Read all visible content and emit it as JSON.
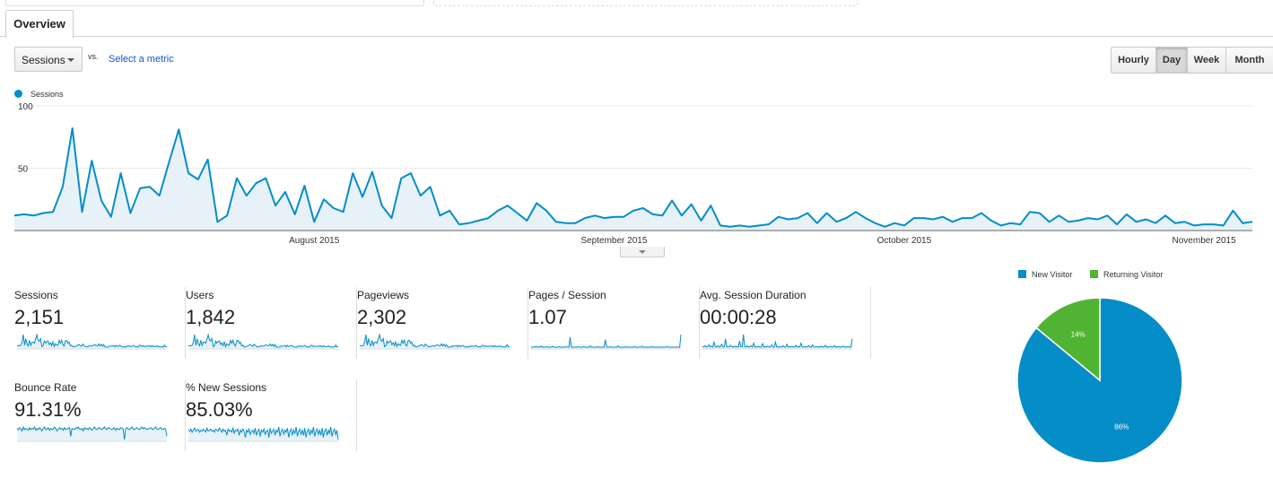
{
  "tabs": {
    "overview": "Overview"
  },
  "toolbar": {
    "metric_select": "Sessions",
    "vs": "vs.",
    "select_metric": "Select a metric",
    "time_buttons": [
      {
        "label": "Hourly",
        "active": false
      },
      {
        "label": "Day",
        "active": true
      },
      {
        "label": "Week",
        "active": false
      },
      {
        "label": "Month",
        "active": false
      }
    ]
  },
  "colors": {
    "accent": "#058dc7",
    "secondary": "#50b432",
    "area_fill": "#e6f2f8",
    "link": "#1155cc"
  },
  "chart_data": {
    "type": "area",
    "legend": "Sessions",
    "yticks": [
      100,
      50
    ],
    "ylim": [
      0,
      100
    ],
    "x_tick_labels": [
      {
        "label": "August 2015",
        "index": 31
      },
      {
        "label": "September 2015",
        "index": 62
      },
      {
        "label": "October 2015",
        "index": 92
      },
      {
        "label": "November 2015",
        "index": 123
      }
    ],
    "start_date": "2015-07-01",
    "values": [
      12,
      13,
      12,
      14,
      15,
      35,
      82,
      15,
      56,
      24,
      11,
      46,
      14,
      34,
      35,
      28,
      55,
      81,
      46,
      41,
      57,
      7,
      12,
      42,
      28,
      38,
      42,
      20,
      31,
      13,
      36,
      7,
      25,
      18,
      15,
      46,
      27,
      47,
      20,
      10,
      42,
      46,
      28,
      35,
      12,
      16,
      5,
      6,
      8,
      10,
      16,
      20,
      14,
      8,
      22,
      16,
      7,
      6,
      6,
      10,
      12,
      10,
      11,
      11,
      16,
      18,
      13,
      12,
      24,
      12,
      21,
      8,
      20,
      4,
      3,
      4,
      3,
      4,
      5,
      11,
      9,
      10,
      14,
      6,
      14,
      7,
      10,
      15,
      10,
      6,
      3,
      6,
      4,
      10,
      10,
      9,
      11,
      7,
      10,
      10,
      14,
      8,
      4,
      6,
      5,
      15,
      14,
      7,
      12,
      7,
      8,
      10,
      9,
      12,
      5,
      13,
      7,
      9,
      6,
      12,
      6,
      7,
      4,
      5,
      5,
      4,
      16,
      6,
      7
    ]
  },
  "scorecards": [
    {
      "label": "Sessions",
      "value": "2,151",
      "spark": [
        12,
        13,
        12,
        15,
        35,
        82,
        15,
        56,
        24,
        11,
        46,
        14,
        34,
        35,
        28,
        55,
        81,
        46,
        41,
        57,
        7,
        12,
        42,
        28,
        38,
        42,
        20,
        31,
        13,
        36,
        7,
        25,
        18,
        15,
        46,
        27,
        47,
        20,
        10,
        42,
        46,
        28,
        35,
        12,
        16,
        5,
        6,
        8,
        10,
        16,
        20,
        14,
        8,
        22,
        16,
        7,
        6,
        6,
        10,
        12,
        10,
        11,
        16,
        18,
        13,
        12,
        24,
        12,
        21,
        8,
        20,
        4,
        3,
        4,
        5,
        11,
        9,
        10,
        14,
        6,
        14,
        7,
        10,
        15,
        10,
        6,
        3,
        6,
        4,
        10,
        9,
        11,
        7,
        10,
        14,
        8,
        4,
        6,
        5,
        15,
        14,
        7,
        12,
        7,
        8,
        10,
        9,
        12,
        5,
        13,
        7,
        9,
        6,
        12,
        6,
        7,
        4,
        5,
        4,
        16,
        6,
        7
      ]
    },
    {
      "label": "Users",
      "value": "1,842",
      "spark": [
        10,
        11,
        10,
        13,
        30,
        70,
        13,
        48,
        21,
        10,
        40,
        12,
        30,
        30,
        24,
        47,
        69,
        40,
        36,
        49,
        6,
        10,
        36,
        24,
        33,
        36,
        17,
        27,
        11,
        31,
        6,
        22,
        15,
        13,
        40,
        23,
        40,
        17,
        9,
        36,
        40,
        24,
        30,
        10,
        14,
        4,
        5,
        7,
        9,
        14,
        17,
        12,
        7,
        19,
        14,
        6,
        5,
        5,
        9,
        10,
        9,
        9,
        14,
        15,
        11,
        10,
        20,
        10,
        18,
        7,
        17,
        4,
        3,
        3,
        4,
        9,
        8,
        9,
        12,
        5,
        12,
        6,
        9,
        13,
        9,
        5,
        3,
        5,
        4,
        9,
        8,
        9,
        6,
        9,
        12,
        7,
        4,
        5,
        4,
        13,
        12,
        6,
        10,
        6,
        7,
        9,
        8,
        10,
        4,
        11,
        6,
        8,
        5,
        10,
        5,
        6,
        3,
        4,
        4,
        14,
        5,
        6
      ]
    },
    {
      "label": "Pageviews",
      "value": "2,302",
      "spark": [
        13,
        14,
        13,
        16,
        38,
        86,
        16,
        60,
        26,
        12,
        48,
        15,
        36,
        37,
        30,
        59,
        85,
        49,
        43,
        60,
        8,
        13,
        45,
        30,
        40,
        45,
        21,
        33,
        14,
        38,
        8,
        27,
        19,
        16,
        49,
        29,
        50,
        21,
        11,
        45,
        49,
        30,
        37,
        13,
        17,
        6,
        7,
        9,
        11,
        17,
        21,
        15,
        9,
        24,
        17,
        8,
        7,
        7,
        11,
        13,
        11,
        12,
        17,
        19,
        14,
        13,
        26,
        13,
        22,
        9,
        21,
        5,
        4,
        5,
        6,
        12,
        10,
        11,
        15,
        7,
        15,
        8,
        11,
        16,
        11,
        7,
        4,
        7,
        5,
        11,
        10,
        12,
        8,
        11,
        15,
        9,
        5,
        7,
        6,
        16,
        15,
        8,
        13,
        8,
        9,
        11,
        10,
        13,
        6,
        14,
        8,
        10,
        7,
        13,
        7,
        8,
        5,
        6,
        5,
        20,
        7,
        8
      ]
    },
    {
      "label": "Pages / Session",
      "value": "1.07",
      "spark": [
        1,
        1,
        1,
        1.02,
        1,
        1.03,
        1,
        1,
        1.05,
        1,
        1,
        1,
        1.02,
        1,
        1,
        1,
        1,
        1.04,
        1,
        1,
        1,
        1,
        1.02,
        1,
        1,
        1,
        1,
        1,
        1.03,
        1,
        1,
        1.4,
        1,
        1,
        1,
        1,
        1,
        1.02,
        1,
        1,
        1,
        1,
        1.03,
        1,
        1,
        1,
        1,
        1.05,
        1,
        1,
        1,
        1,
        1,
        1.02,
        1,
        1,
        1,
        1,
        1,
        1.3,
        1,
        1,
        1,
        1.02,
        1,
        1,
        1,
        1,
        1,
        1.05,
        1,
        1,
        1,
        1,
        1,
        1.02,
        1,
        1,
        1,
        1,
        1,
        1,
        1.03,
        1,
        1,
        1,
        1,
        1,
        1.04,
        1,
        1,
        1,
        1,
        1,
        1,
        1,
        1.02,
        1,
        1,
        1,
        1,
        1,
        1.01,
        1,
        1,
        1,
        1,
        1,
        1.02,
        1,
        1,
        1,
        1,
        1,
        1,
        1,
        1,
        1,
        1,
        1.5
      ]
    },
    {
      "label": "Avg. Session Duration",
      "value": "00:00:28",
      "spark": [
        5,
        2,
        8,
        1,
        3,
        12,
        2,
        6,
        1,
        25,
        3,
        2,
        8,
        1,
        4,
        15,
        2,
        3,
        40,
        2,
        5,
        1,
        10,
        3,
        2,
        6,
        1,
        4,
        2,
        30,
        3,
        2,
        60,
        4,
        2,
        7,
        1,
        3,
        8,
        2,
        20,
        1,
        3,
        2,
        5,
        1,
        2,
        18,
        1,
        3,
        2,
        6,
        1,
        2,
        12,
        3,
        1,
        25,
        2,
        4,
        1,
        3,
        2,
        8,
        1,
        2,
        15,
        1,
        3,
        2,
        5,
        1,
        2,
        10,
        1,
        3,
        2,
        20,
        1,
        2,
        4,
        1,
        3,
        8,
        1,
        2,
        12,
        1,
        2,
        4,
        1,
        3,
        2,
        6,
        1,
        2,
        10,
        1,
        3,
        2,
        5,
        1,
        2,
        8,
        1,
        3,
        2,
        4,
        1,
        2,
        6,
        1,
        3,
        2,
        4,
        1,
        2,
        40
      ]
    },
    {
      "label": "Bounce Rate",
      "value": "91.31%",
      "spark": [
        92,
        90,
        93,
        91,
        88,
        94,
        90,
        92,
        91,
        89,
        93,
        90,
        92,
        91,
        94,
        89,
        92,
        90,
        93,
        91,
        88,
        92,
        94,
        90,
        91,
        93,
        89,
        92,
        90,
        91,
        94,
        92,
        88,
        90,
        93,
        91,
        92,
        89,
        93,
        90,
        91,
        92,
        93,
        80,
        92,
        91,
        90,
        93,
        92,
        94,
        91,
        90,
        92,
        88,
        93,
        91,
        92,
        90,
        93,
        91,
        89,
        92,
        94,
        91,
        90,
        92,
        93,
        91,
        90,
        92,
        94,
        91,
        90,
        93,
        92,
        91,
        90,
        92,
        93,
        89,
        92,
        91,
        90,
        93,
        92,
        91,
        75,
        92,
        93,
        91,
        90,
        92,
        94,
        91,
        90,
        92,
        93,
        91,
        90,
        92,
        94,
        91,
        93,
        92,
        90,
        91,
        92,
        93,
        91,
        90,
        92,
        94,
        91,
        90,
        92,
        93,
        91,
        90,
        92,
        91,
        80
      ]
    },
    {
      "label": "% New Sessions",
      "value": "85.03%",
      "spark": [
        85,
        84,
        86,
        83,
        85,
        87,
        84,
        85,
        86,
        83,
        85,
        84,
        86,
        85,
        83,
        87,
        84,
        85,
        86,
        84,
        85,
        83,
        86,
        85,
        84,
        87,
        85,
        83,
        86,
        84,
        85,
        80,
        86,
        84,
        85,
        83,
        87,
        82,
        85,
        84,
        86,
        80,
        85,
        83,
        86,
        84,
        78,
        85,
        83,
        86,
        81,
        84,
        85,
        82,
        87,
        80,
        84,
        86,
        79,
        85,
        83,
        86,
        81,
        84,
        85,
        78,
        87,
        82,
        84,
        86,
        80,
        85,
        83,
        88,
        79,
        84,
        86,
        81,
        85,
        83,
        87,
        78,
        84,
        86,
        80,
        85,
        82,
        88,
        79,
        84,
        86,
        81,
        85,
        80,
        87,
        78,
        84,
        86,
        80,
        85,
        82,
        88,
        79,
        84,
        86,
        81,
        85,
        80,
        87,
        78,
        84,
        86,
        80,
        85,
        82,
        88,
        79,
        84,
        86,
        81,
        85,
        76
      ]
    }
  ],
  "pie": {
    "legend": [
      {
        "label": "New Visitor",
        "color": "#058dc7"
      },
      {
        "label": "Returning Visitor",
        "color": "#50b432"
      }
    ],
    "slices": [
      {
        "label": "New Visitor",
        "percent": 86,
        "text": "86%",
        "color": "#058dc7"
      },
      {
        "label": "Returning Visitor",
        "percent": 14,
        "text": "14%",
        "color": "#50b432"
      }
    ]
  }
}
